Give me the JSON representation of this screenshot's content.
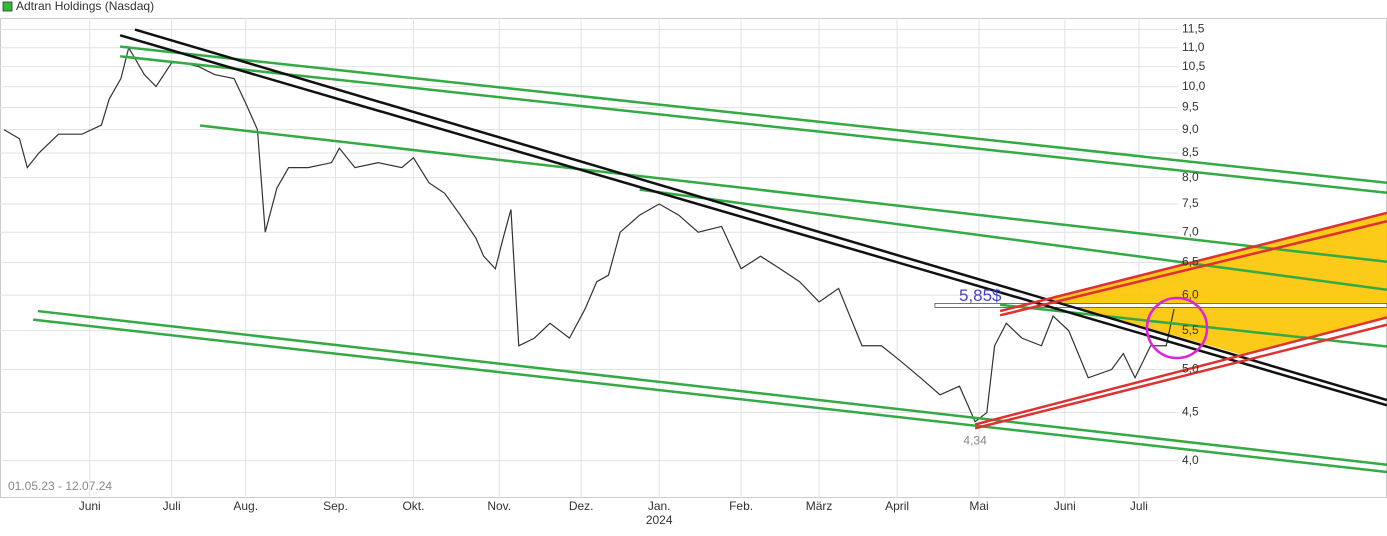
{
  "chart_data": {
    "type": "line",
    "title": "Adtran Holdings (Nasdaq)",
    "legend_color": "#33bb33",
    "date_range": "01.05.23 - 12.07.24",
    "log_scale": true,
    "grid": true,
    "xlim": [
      -1,
      354.6
    ],
    "ylim": [
      3.65,
      11.83
    ],
    "xticks": [
      {
        "value": 22,
        "label": "Juni"
      },
      {
        "value": 43,
        "label": "Juli"
      },
      {
        "value": 62,
        "label": "Aug."
      },
      {
        "value": 85,
        "label": "Sep."
      },
      {
        "value": 105,
        "label": "Okt."
      },
      {
        "value": 127,
        "label": "Nov."
      },
      {
        "value": 148,
        "label": "Dez."
      },
      {
        "value": 168,
        "label": "Jan."
      },
      {
        "value": 189,
        "label": "Feb."
      },
      {
        "value": 209,
        "label": "März"
      },
      {
        "value": 229,
        "label": "April"
      },
      {
        "value": 250,
        "label": "Mai"
      },
      {
        "value": 272,
        "label": "Juni"
      },
      {
        "value": 291,
        "label": "Juli"
      }
    ],
    "year_label": {
      "value": 168,
      "label": "2024"
    },
    "yticks": [
      {
        "value": 4,
        "label": "4,0"
      },
      {
        "value": 4.5,
        "label": "4,5"
      },
      {
        "value": 5,
        "label": "5,0"
      },
      {
        "value": 5.5,
        "label": "5,5"
      },
      {
        "value": 6,
        "label": "6,0"
      },
      {
        "value": 6.5,
        "label": "6,5"
      },
      {
        "value": 7,
        "label": "7,0"
      },
      {
        "value": 7.5,
        "label": "7,5"
      },
      {
        "value": 8,
        "label": "8,0"
      },
      {
        "value": 8.5,
        "label": "8,5"
      },
      {
        "value": 9,
        "label": "9,0"
      },
      {
        "value": 9.5,
        "label": "9,5"
      },
      {
        "value": 10,
        "label": "10,0"
      },
      {
        "value": 10.5,
        "label": "10,5"
      },
      {
        "value": 11,
        "label": "11,0"
      },
      {
        "value": 11.5,
        "label": "11,5"
      }
    ],
    "series": [
      {
        "name": "Adtran Holdings (Nasdaq)",
        "color": "#333333",
        "x": [
          0,
          4,
          6,
          9,
          14,
          20,
          25,
          27,
          30,
          32,
          36,
          39,
          43,
          46,
          50,
          54,
          59,
          62,
          65,
          67,
          70,
          73,
          78,
          84,
          86,
          90,
          96,
          102,
          105,
          109,
          113,
          117,
          121,
          123,
          126,
          128,
          130,
          132,
          136,
          140,
          145,
          149,
          152,
          155,
          158,
          163,
          168,
          173,
          178,
          184,
          189,
          194,
          199,
          204,
          209,
          214,
          220,
          225,
          230,
          235,
          240,
          245,
          249,
          252,
          254,
          257,
          261,
          266,
          269,
          273,
          278,
          284,
          287,
          290,
          294,
          298,
          300
        ],
        "values": [
          9.0,
          8.8,
          8.2,
          8.5,
          8.9,
          8.9,
          9.1,
          9.7,
          10.2,
          11.0,
          10.3,
          10.0,
          10.6,
          10.6,
          10.5,
          10.3,
          10.2,
          9.6,
          9.0,
          7.0,
          7.8,
          8.2,
          8.2,
          8.3,
          8.6,
          8.2,
          8.3,
          8.2,
          8.4,
          7.9,
          7.7,
          7.3,
          6.9,
          6.6,
          6.4,
          6.9,
          7.4,
          5.3,
          5.4,
          5.6,
          5.4,
          5.8,
          6.2,
          6.3,
          7.0,
          7.3,
          7.5,
          7.3,
          7.0,
          7.1,
          6.4,
          6.6,
          6.4,
          6.2,
          5.9,
          6.1,
          5.3,
          5.3,
          5.1,
          4.9,
          4.7,
          4.8,
          4.4,
          4.5,
          5.3,
          5.6,
          5.4,
          5.3,
          5.7,
          5.5,
          4.9,
          5.0,
          5.2,
          4.9,
          5.3,
          5.3,
          5.8
        ]
      }
    ],
    "zone": {
      "color": "#fcc400",
      "points": [
        [
          268.2,
          5.93
        ],
        [
          354.6,
          7.34
        ],
        [
          354.6,
          5.68
        ],
        [
          317,
          5.19
        ]
      ]
    },
    "trendlines": [
      {
        "color": "#33aa44",
        "points": [
          [
            29.8,
            11.03
          ],
          [
            354.6,
            7.9
          ]
        ]
      },
      {
        "color": "#33aa44",
        "points": [
          [
            29.8,
            10.77
          ],
          [
            354.6,
            7.71
          ]
        ]
      },
      {
        "color": "#33aa44",
        "points": [
          [
            50.3,
            9.09
          ],
          [
            354.6,
            6.51
          ]
        ]
      },
      {
        "color": "#33aa44",
        "points": [
          [
            163,
            7.77
          ],
          [
            354.6,
            6.08
          ]
        ]
      },
      {
        "color": "#33aa44",
        "points": [
          [
            255.4,
            5.86
          ],
          [
            354.6,
            5.29
          ]
        ]
      },
      {
        "color": "#33aa44",
        "points": [
          [
            8.7,
            5.77
          ],
          [
            354.6,
            3.96
          ]
        ]
      },
      {
        "color": "#33aa44",
        "points": [
          [
            7.5,
            5.65
          ],
          [
            354.6,
            3.89
          ]
        ]
      },
      {
        "color": "#111111",
        "points": [
          [
            33.6,
            11.5
          ],
          [
            354.6,
            4.64
          ]
        ]
      },
      {
        "color": "#111111",
        "points": [
          [
            29.8,
            11.34
          ],
          [
            354.6,
            4.58
          ]
        ]
      },
      {
        "color": "#e03030",
        "points": [
          [
            249,
            4.37
          ],
          [
            354.6,
            5.68
          ]
        ]
      },
      {
        "color": "#e03030",
        "points": [
          [
            249,
            4.33
          ],
          [
            354.6,
            5.58
          ]
        ]
      },
      {
        "color": "#e03030",
        "points": [
          [
            255.4,
            5.77
          ],
          [
            354.6,
            7.34
          ]
        ]
      },
      {
        "color": "#e03030",
        "points": [
          [
            255.4,
            5.71
          ],
          [
            354.6,
            7.19
          ]
        ]
      }
    ],
    "hline": {
      "value": 5.85,
      "x": [
        238.7,
        354.6
      ],
      "label": "5,85$",
      "color": "#4444cc"
    },
    "low_label": {
      "value": 4.34,
      "x": 249,
      "label": "4,34"
    }
  }
}
